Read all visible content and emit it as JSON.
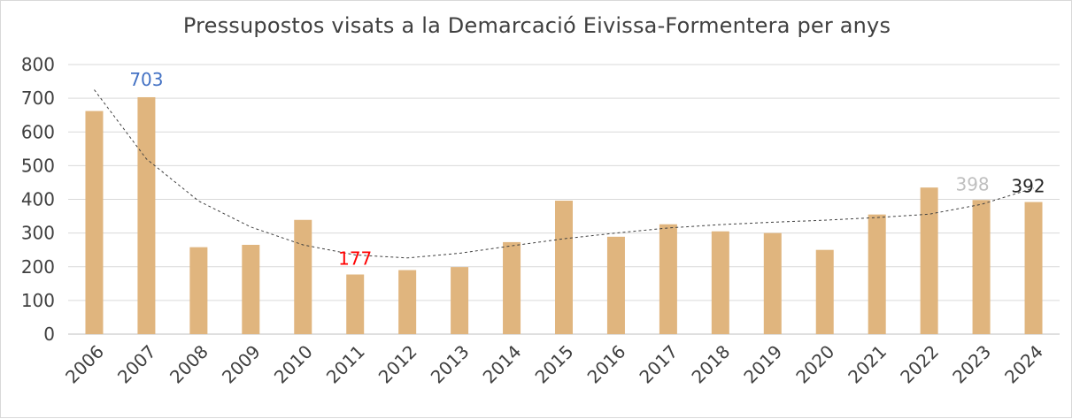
{
  "chart_data": {
    "type": "bar",
    "title": "Pressupostos visats a la Demarcació Eivissa-Formentera per anys",
    "xlabel": "",
    "ylabel": "",
    "ylim": [
      0,
      800
    ],
    "yticks": [
      0,
      100,
      200,
      300,
      400,
      500,
      600,
      700,
      800
    ],
    "grid": true,
    "categories": [
      "2006",
      "2007",
      "2008",
      "2009",
      "2010",
      "2011",
      "2012",
      "2013",
      "2014",
      "2015",
      "2016",
      "2017",
      "2018",
      "2019",
      "2020",
      "2021",
      "2022",
      "2023",
      "2024"
    ],
    "values": [
      662,
      703,
      258,
      265,
      339,
      177,
      190,
      199,
      273,
      396,
      289,
      326,
      305,
      300,
      250,
      355,
      435,
      398,
      392
    ],
    "bar_color": "#e0b57e",
    "trendline": {
      "type": "polynomial",
      "style": "dashed",
      "color": "#404040",
      "values": [
        725,
        520,
        395,
        318,
        265,
        235,
        226,
        240,
        262,
        283,
        300,
        315,
        325,
        332,
        338,
        346,
        356,
        385,
        433
      ]
    },
    "data_labels": [
      {
        "category": "2007",
        "text": "703",
        "color": "#4472c4"
      },
      {
        "category": "2011",
        "text": "177",
        "color": "#ff0000"
      },
      {
        "category": "2023",
        "text": "398",
        "color": "#bfbfbf"
      },
      {
        "category": "2024",
        "text": "392",
        "color": "#262626"
      }
    ]
  }
}
